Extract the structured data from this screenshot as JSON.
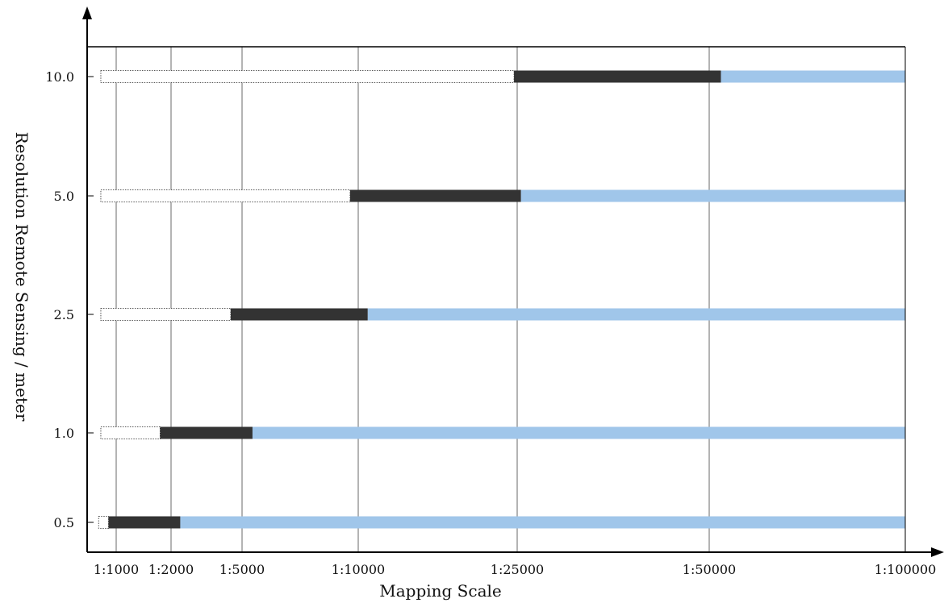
{
  "chart_data": {
    "type": "bar",
    "orientation": "horizontal-range",
    "title": "",
    "xlabel": "Mapping Scale",
    "ylabel": "Resolution Remote Sensing / meter",
    "x_ticks": [
      "1:1000",
      "1:2000",
      "1:5000",
      "1:10000",
      "1:25000",
      "1:50000",
      "1:100000"
    ],
    "y_ticks": [
      "0.5",
      "1.0",
      "2.5",
      "5.0",
      "10.0"
    ],
    "grid": "vertical lines at each mapping scale tick",
    "colors": {
      "unsuitable": "#ffffff",
      "optimal": "#333333",
      "usable": "#a0c6ea",
      "axis": "#000000",
      "grid": "#444444"
    },
    "rows": [
      {
        "resolution": "0.5",
        "segments": [
          {
            "kind": "unsuitable",
            "start_tick": -0.32,
            "end_tick": -0.14
          },
          {
            "kind": "optimal",
            "start_tick": -0.14,
            "end_tick": 1.13
          },
          {
            "kind": "usable",
            "start_tick": 1.13,
            "end_tick": 6.0
          }
        ]
      },
      {
        "resolution": "1.0",
        "segments": [
          {
            "kind": "unsuitable",
            "start_tick": -0.28,
            "end_tick": 0.8
          },
          {
            "kind": "optimal",
            "start_tick": 0.8,
            "end_tick": 2.09
          },
          {
            "kind": "usable",
            "start_tick": 2.09,
            "end_tick": 6.0
          }
        ]
      },
      {
        "resolution": "2.5",
        "segments": [
          {
            "kind": "unsuitable",
            "start_tick": -0.28,
            "end_tick": 1.84
          },
          {
            "kind": "optimal",
            "start_tick": 1.84,
            "end_tick": 3.06
          },
          {
            "kind": "usable",
            "start_tick": 3.06,
            "end_tick": 6.0
          }
        ]
      },
      {
        "resolution": "5.0",
        "segments": [
          {
            "kind": "unsuitable",
            "start_tick": -0.28,
            "end_tick": 2.93
          },
          {
            "kind": "optimal",
            "start_tick": 2.93,
            "end_tick": 4.02
          },
          {
            "kind": "usable",
            "start_tick": 4.02,
            "end_tick": 6.0
          }
        ]
      },
      {
        "resolution": "10.0",
        "segments": [
          {
            "kind": "unsuitable",
            "start_tick": -0.28,
            "end_tick": 3.98
          },
          {
            "kind": "optimal",
            "start_tick": 3.98,
            "end_tick": 5.06
          },
          {
            "kind": "usable",
            "start_tick": 5.06,
            "end_tick": 6.0
          }
        ]
      }
    ]
  }
}
